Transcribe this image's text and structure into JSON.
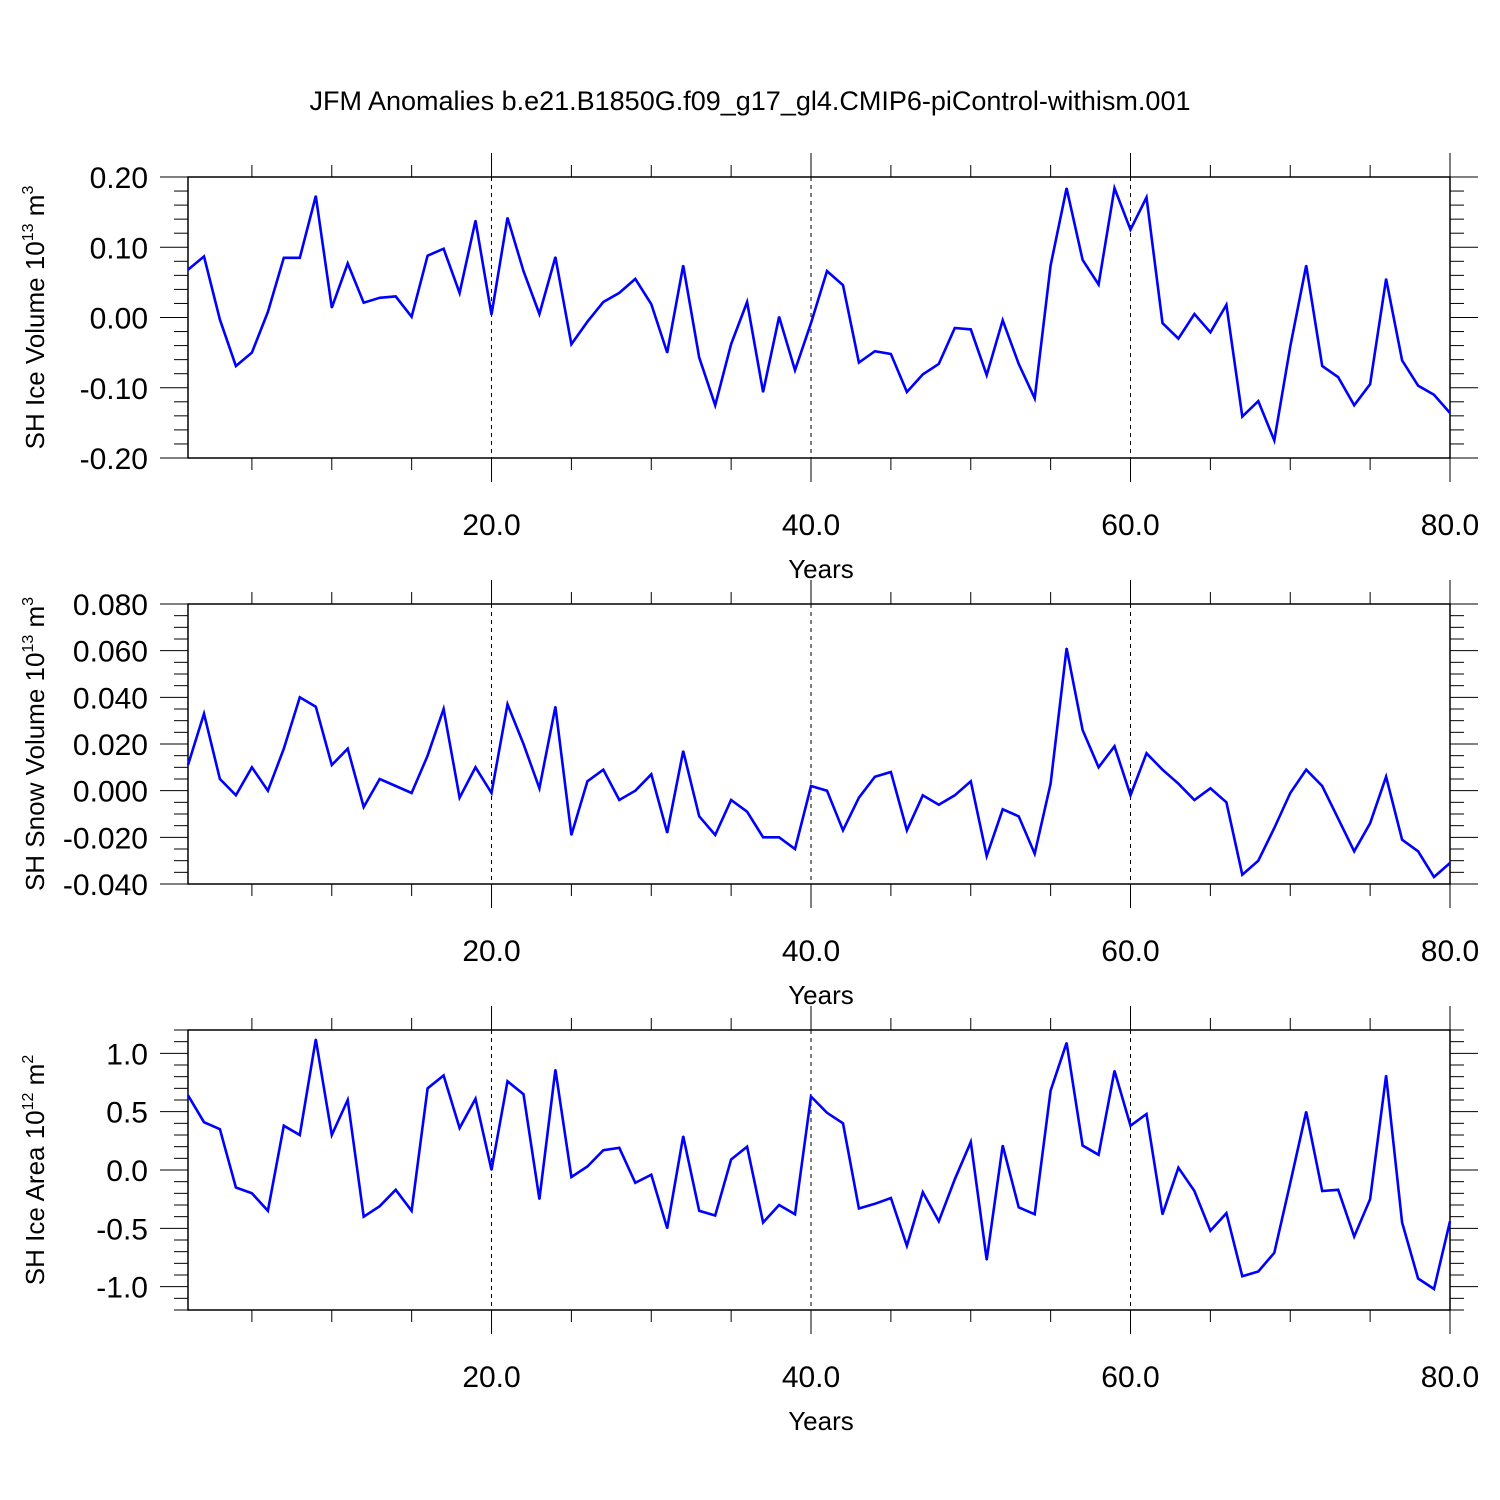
{
  "title": "JFM Anomalies b.e21.B1850G.f09_g17_gl4.CMIP6-piControl-withism.001",
  "line_color": "#0000ff",
  "chart_data": [
    {
      "type": "line",
      "title": "",
      "xlabel": "Years",
      "ylabel": {
        "text": "SH Ice Volume 10",
        "exp": "13",
        "unit": " m",
        "unit_exp": "3"
      },
      "xlim": [
        1,
        80
      ],
      "ylim": [
        -0.2,
        0.2
      ],
      "xticks": [
        20,
        40,
        60,
        80
      ],
      "xtick_labels": [
        "20.0",
        "40.0",
        "60.0",
        "80.0"
      ],
      "yticks": [
        -0.2,
        -0.1,
        0.0,
        0.1,
        0.2
      ],
      "ytick_labels": [
        "-0.20",
        "-0.10",
        "0.00",
        "0.10",
        "0.20"
      ],
      "ytick_minor": 0.02,
      "grid": "dashed vertical at major x ticks",
      "series": [
        {
          "values": [
            0.068,
            0.087,
            -0.003,
            -0.069,
            -0.05,
            0.008,
            0.085,
            0.085,
            0.173,
            0.014,
            0.077,
            0.021,
            0.028,
            0.03,
            0.001,
            0.088,
            0.098,
            0.035,
            0.138,
            0.004,
            0.142,
            0.066,
            0.005,
            0.086,
            -0.038,
            -0.006,
            0.022,
            0.035,
            0.055,
            0.019,
            -0.05,
            0.074,
            -0.057,
            -0.125,
            -0.038,
            0.022,
            -0.106,
            0.001,
            -0.075,
            -0.008,
            0.066,
            0.046,
            -0.064,
            -0.048,
            -0.052,
            -0.106,
            -0.081,
            -0.066,
            -0.015,
            -0.017,
            -0.082,
            -0.004,
            -0.066,
            -0.115,
            0.074,
            0.184,
            0.082,
            0.047,
            0.184,
            0.125,
            0.171,
            -0.008,
            -0.03,
            0.005,
            -0.021,
            0.018,
            -0.141,
            -0.119,
            -0.175,
            -0.041,
            0.074,
            -0.069,
            -0.085,
            -0.125,
            -0.095,
            0.055,
            -0.061,
            -0.097,
            -0.11,
            -0.136
          ]
        }
      ]
    },
    {
      "type": "line",
      "title": "",
      "xlabel": "Years",
      "ylabel": {
        "text": "SH Snow Volume 10",
        "exp": "13",
        "unit": " m",
        "unit_exp": "3"
      },
      "xlim": [
        1,
        80
      ],
      "ylim": [
        -0.04,
        0.08
      ],
      "xticks": [
        20,
        40,
        60,
        80
      ],
      "xtick_labels": [
        "20.0",
        "40.0",
        "60.0",
        "80.0"
      ],
      "yticks": [
        -0.04,
        -0.02,
        0.0,
        0.02,
        0.04,
        0.06,
        0.08
      ],
      "ytick_labels": [
        "-0.040",
        "-0.020",
        "0.000",
        "0.020",
        "0.040",
        "0.060",
        "0.080"
      ],
      "ytick_minor": 0.005,
      "grid": "dashed vertical at major x ticks",
      "series": [
        {
          "values": [
            0.011,
            0.033,
            0.005,
            -0.002,
            0.01,
            0.0,
            0.018,
            0.04,
            0.036,
            0.011,
            0.018,
            -0.007,
            0.005,
            0.002,
            -0.001,
            0.015,
            0.035,
            -0.003,
            0.01,
            -0.001,
            0.037,
            0.02,
            0.001,
            0.036,
            -0.019,
            0.004,
            0.009,
            -0.004,
            0.0,
            0.007,
            -0.018,
            0.017,
            -0.011,
            -0.019,
            -0.004,
            -0.009,
            -0.02,
            -0.02,
            -0.025,
            0.002,
            0.0,
            -0.017,
            -0.003,
            0.006,
            0.008,
            -0.017,
            -0.002,
            -0.006,
            -0.002,
            0.004,
            -0.028,
            -0.008,
            -0.011,
            -0.027,
            0.003,
            0.061,
            0.026,
            0.01,
            0.019,
            -0.002,
            0.016,
            0.009,
            0.003,
            -0.004,
            0.001,
            -0.005,
            -0.036,
            -0.03,
            -0.016,
            -0.001,
            0.009,
            0.002,
            -0.012,
            -0.026,
            -0.014,
            0.006,
            -0.021,
            -0.026,
            -0.037,
            -0.031
          ]
        }
      ]
    },
    {
      "type": "line",
      "title": "",
      "xlabel": "Years",
      "ylabel": {
        "text": "SH Ice Area 10",
        "exp": "12",
        "unit": " m",
        "unit_exp": "2"
      },
      "xlim": [
        1,
        80
      ],
      "ylim": [
        -1.2,
        1.2
      ],
      "xticks": [
        20,
        40,
        60,
        80
      ],
      "xtick_labels": [
        "20.0",
        "40.0",
        "60.0",
        "80.0"
      ],
      "yticks": [
        -1.0,
        -0.5,
        0.0,
        0.5,
        1.0
      ],
      "ytick_labels": [
        "-1.0",
        "-0.5",
        "0.0",
        "0.5",
        "1.0"
      ],
      "ytick_minor": 0.1,
      "grid": "dashed vertical at major x ticks",
      "series": [
        {
          "values": [
            0.64,
            0.41,
            0.35,
            -0.15,
            -0.2,
            -0.35,
            0.38,
            0.3,
            1.12,
            0.3,
            0.6,
            -0.4,
            -0.31,
            -0.17,
            -0.35,
            0.7,
            0.81,
            0.36,
            0.61,
            0.0,
            0.76,
            0.65,
            -0.25,
            0.86,
            -0.06,
            0.03,
            0.17,
            0.19,
            -0.11,
            -0.04,
            -0.5,
            0.29,
            -0.35,
            -0.39,
            0.09,
            0.2,
            -0.45,
            -0.3,
            -0.38,
            0.63,
            0.49,
            0.4,
            -0.33,
            -0.29,
            -0.24,
            -0.65,
            -0.19,
            -0.44,
            -0.08,
            0.24,
            -0.77,
            0.21,
            -0.32,
            -0.38,
            0.68,
            1.09,
            0.21,
            0.13,
            0.85,
            0.38,
            0.48,
            -0.38,
            0.02,
            -0.18,
            -0.52,
            -0.37,
            -0.91,
            -0.87,
            -0.71,
            -0.11,
            0.5,
            -0.18,
            -0.17,
            -0.57,
            -0.25,
            0.81,
            -0.45,
            -0.93,
            -1.02,
            -0.44
          ]
        }
      ]
    }
  ]
}
